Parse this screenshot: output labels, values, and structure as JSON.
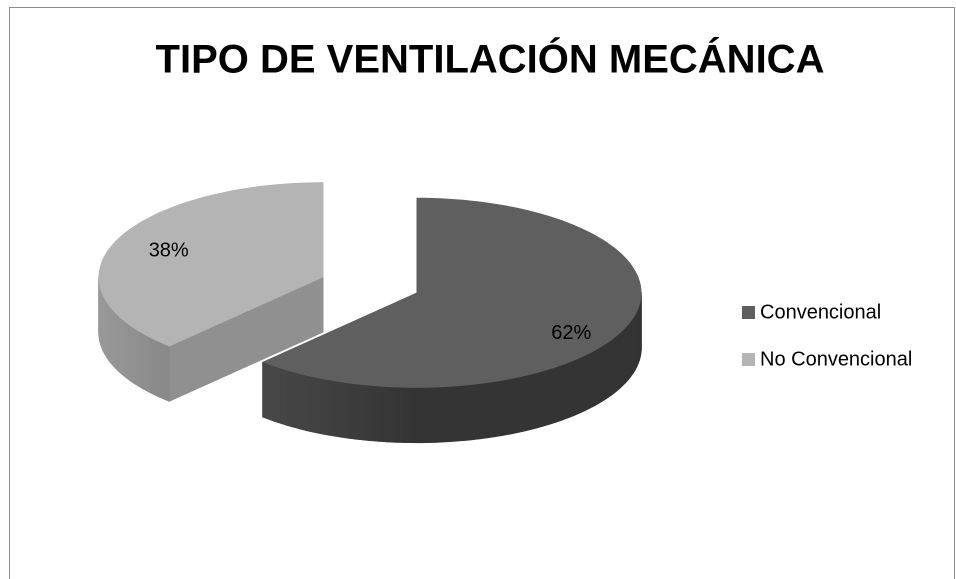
{
  "chart_data": {
    "type": "pie",
    "title": "TIPO DE VENTILACIÓN MECÁNICA",
    "categories": [
      "Convencional",
      "No Convencional"
    ],
    "values": [
      62,
      38
    ],
    "value_labels": [
      "62%",
      "38%"
    ],
    "colors": [
      "#5f5f5f",
      "#b4b4b4"
    ],
    "legend": "right"
  }
}
